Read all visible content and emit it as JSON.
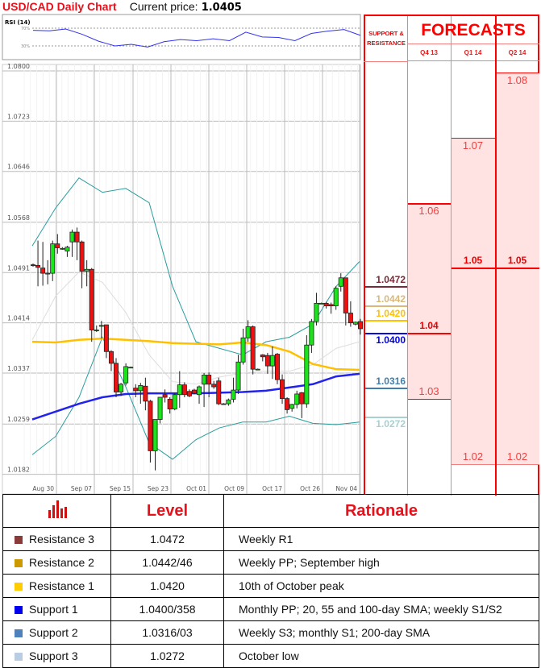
{
  "header": {
    "title": "USD/CAD Daily Chart",
    "current_price_label": "Current price:",
    "current_price": "1.0405"
  },
  "rsi": {
    "label": "RSI (14)",
    "levels": [
      "70%",
      "30%"
    ],
    "values": [
      65.2,
      64.0,
      68.2,
      56.3,
      40.7,
      30.0,
      33.6,
      27.6,
      39.6,
      44.3,
      41.9,
      46.1,
      41.9,
      61.0,
      50.3,
      49.1,
      41.9,
      58.1,
      63.4,
      67.0,
      53.9
    ]
  },
  "chart_data": {
    "type": "candlestick",
    "y_ticks": [
      "1.0800",
      "1.0723",
      "1.0646",
      "1.0568",
      "1.0491",
      "1.0414",
      "1.0337",
      "1.0259",
      "1.0182"
    ],
    "x_ticks": [
      "Aug 30",
      "Sep 07",
      "Sep 15",
      "Sep 23",
      "Oct 01",
      "Oct 09",
      "Oct 17",
      "Oct 26",
      "Nov 04"
    ],
    "ylim": [
      1.0182,
      1.08
    ],
    "grid": true,
    "colors": {
      "up": "#19e619",
      "down": "#ee1111",
      "sma_yellow": "#ffc000",
      "sma_blue": "#2222ee",
      "bollinger": "#2a9d9d",
      "sma_grey": "#dddddd"
    },
    "candles_ohlc": [
      [
        1.0503,
        1.0505,
        1.05,
        1.0502
      ],
      [
        1.0502,
        1.054,
        1.047,
        1.0499
      ],
      [
        1.0498,
        1.0538,
        1.0471,
        1.049
      ],
      [
        1.049,
        1.051,
        1.0473,
        1.049
      ],
      [
        1.049,
        1.054,
        1.0478,
        1.0535
      ],
      [
        1.0535,
        1.055,
        1.052,
        1.0529
      ],
      [
        1.0528,
        1.053,
        1.0526,
        1.0528
      ],
      [
        1.0524,
        1.0532,
        1.0515,
        1.053
      ],
      [
        1.0538,
        1.0557,
        1.0515,
        1.0553
      ],
      [
        1.0553,
        1.056,
        1.051,
        1.0538
      ],
      [
        1.0538,
        1.054,
        1.0467,
        1.0493
      ],
      [
        1.0493,
        1.051,
        1.047,
        1.0496
      ],
      [
        1.0496,
        1.0498,
        1.0385,
        1.0403
      ],
      [
        1.0403,
        1.041,
        1.04,
        1.0403
      ],
      [
        1.041,
        1.0417,
        1.039,
        1.041
      ],
      [
        1.0411,
        1.0411,
        1.036,
        1.037
      ],
      [
        1.037,
        1.0372,
        1.034,
        1.0352
      ],
      [
        1.0352,
        1.036,
        1.03,
        1.0308
      ],
      [
        1.0308,
        1.0322,
        1.0302,
        1.032
      ],
      [
        1.0322,
        1.0352,
        1.0318,
        1.0347
      ],
      [
        1.0346,
        1.0347,
        1.0345,
        1.0346
      ],
      [
        1.0314,
        1.032,
        1.03,
        1.031
      ],
      [
        1.031,
        1.0322,
        1.029,
        1.0318
      ],
      [
        1.0317,
        1.033,
        1.028,
        1.0294
      ],
      [
        1.0294,
        1.0296,
        1.02,
        1.0218
      ],
      [
        1.0218,
        1.0266,
        1.0188,
        1.0266
      ],
      [
        1.0266,
        1.03,
        1.026,
        1.03
      ],
      [
        1.0304,
        1.0312,
        1.0292,
        1.03
      ],
      [
        1.0297,
        1.03,
        1.0275,
        1.0282
      ],
      [
        1.0282,
        1.0306,
        1.028,
        1.0304
      ],
      [
        1.0304,
        1.034,
        1.0284,
        1.0319
      ],
      [
        1.0319,
        1.0323,
        1.03,
        1.0304
      ],
      [
        1.0309,
        1.0312,
        1.03,
        1.0302
      ],
      [
        1.0311,
        1.0313,
        1.0305,
        1.0306
      ],
      [
        1.0304,
        1.0318,
        1.029,
        1.0316
      ],
      [
        1.032,
        1.0337,
        1.0285,
        1.0334
      ],
      [
        1.0334,
        1.0338,
        1.03,
        1.032
      ],
      [
        1.032,
        1.0325,
        1.0313,
        1.0316
      ],
      [
        1.0325,
        1.033,
        1.0288,
        1.029
      ],
      [
        1.029,
        1.0291,
        1.0289,
        1.029
      ],
      [
        1.029,
        1.0298,
        1.0287,
        1.0296
      ],
      [
        1.0297,
        1.033,
        1.0292,
        1.0311
      ],
      [
        1.0311,
        1.0365,
        1.0305,
        1.0354
      ],
      [
        1.0354,
        1.0405,
        1.035,
        1.0391
      ],
      [
        1.0391,
        1.0418,
        1.0385,
        1.0408
      ],
      [
        1.0408,
        1.041,
        1.0335,
        1.0343
      ],
      [
        1.0343,
        1.0344,
        1.0342,
        1.0343
      ],
      [
        1.0365,
        1.0366,
        1.0355,
        1.0362
      ],
      [
        1.0364,
        1.0368,
        1.0336,
        1.0348
      ],
      [
        1.0348,
        1.0378,
        1.0328,
        1.0364
      ],
      [
        1.0366,
        1.0368,
        1.032,
        1.0327
      ],
      [
        1.0327,
        1.0335,
        1.029,
        1.0298
      ],
      [
        1.0298,
        1.03,
        1.0275,
        1.0281
      ],
      [
        1.0283,
        1.029,
        1.0278,
        1.0289
      ],
      [
        1.0289,
        1.031,
        1.0283,
        1.0305
      ],
      [
        1.0307,
        1.0308,
        1.0268,
        1.029
      ],
      [
        1.029,
        1.0395,
        1.0284,
        1.038
      ],
      [
        1.038,
        1.042,
        1.0368,
        1.0416
      ],
      [
        1.0416,
        1.046,
        1.041,
        1.0444
      ],
      [
        1.0444,
        1.0445,
        1.0443,
        1.0444
      ],
      [
        1.0444,
        1.0446,
        1.0436,
        1.044
      ],
      [
        1.0442,
        1.0445,
        1.0428,
        1.044
      ],
      [
        1.044,
        1.047,
        1.0434,
        1.0467
      ],
      [
        1.047,
        1.049,
        1.0462,
        1.0483
      ],
      [
        1.0483,
        1.0483,
        1.041,
        1.0429
      ],
      [
        1.0429,
        1.0447,
        1.0408,
        1.0414
      ],
      [
        1.0412,
        1.0416,
        1.041,
        1.0415
      ],
      [
        1.0416,
        1.042,
        1.0396,
        1.0405
      ]
    ],
    "lines": {
      "sma_yellow": [
        1.0385,
        1.0384,
        1.0388,
        1.039,
        1.0388,
        1.0386,
        1.0383,
        1.0382,
        1.0381,
        1.0384,
        1.038,
        1.037,
        1.0351,
        1.0343,
        1.0342
      ],
      "sma_blue": [
        1.0266,
        1.0278,
        1.029,
        1.03,
        1.0305,
        1.0306,
        1.0306,
        1.0306,
        1.0307,
        1.0308,
        1.031,
        1.0315,
        1.032,
        1.0332,
        1.0336
      ],
      "bollinger_upper": [
        1.0532,
        1.059,
        1.0636,
        1.0614,
        1.062,
        1.0598,
        1.047,
        1.0385,
        1.0375,
        1.0365,
        1.0385,
        1.0392,
        1.0412,
        1.047,
        1.0508
      ],
      "bollinger_lower": [
        1.0212,
        1.024,
        1.03,
        1.0392,
        1.0316,
        1.023,
        1.0205,
        1.0235,
        1.0253,
        1.0262,
        1.0262,
        1.0271,
        1.026,
        1.0258,
        1.0262
      ],
      "sma_grey": [
        1.0388,
        1.0455,
        1.0492,
        1.0476,
        1.043,
        1.0365,
        1.0324,
        1.032,
        1.0331,
        1.0337,
        1.034,
        1.034,
        1.035,
        1.0375,
        1.0385
      ]
    }
  },
  "forecasts": {
    "title": "FORECASTS",
    "sr_header": "SUPPORT & RESISTANCE",
    "columns": [
      {
        "label": "Q4 13",
        "high": 1.06,
        "median": 1.04,
        "low": 1.03,
        "high_label": "1.06",
        "median_label": "1.04",
        "low_label": "1.03"
      },
      {
        "label": "Q1 14",
        "high": 1.07,
        "median": 1.05,
        "low": 1.02,
        "high_label": "1.07",
        "median_label": "1.05",
        "low_label": "1.02"
      },
      {
        "label": "Q2 14",
        "high": 1.08,
        "median": 1.05,
        "low": 1.02,
        "high_label": "1.08",
        "median_label": "1.05",
        "low_label": "1.02"
      }
    ],
    "fill_color": "#ffe3e3",
    "line_color": "#ff0000"
  },
  "levels": {
    "headers": {
      "level": "Level",
      "rationale": "Rationale"
    },
    "icon": "bar-chart-icon",
    "rows": [
      {
        "name": "Resistance 3",
        "value": 1.0472,
        "value_label": "1.0472",
        "level": "1.0472",
        "rationale": "Weekly R1",
        "color": "#7b2a3a"
      },
      {
        "name": "Resistance 2",
        "value": 1.0442,
        "value_label": "1.0442",
        "level": "1.0442/46",
        "rationale": "Weekly PP; September high",
        "color": "#d9b87a"
      },
      {
        "name": "Resistance 1",
        "value": 1.042,
        "value_label": "1.0420",
        "level": "1.0420",
        "rationale": "10th of October peak",
        "color": "#ffc000"
      },
      {
        "name": "Support 1",
        "value": 1.04,
        "value_label": "1.0400",
        "level": "1.0400/358",
        "rationale": "Monthly PP; 20, 55 and 100-day SMA; weekly S1/S2",
        "color": "#0000ee"
      },
      {
        "name": "Support 2",
        "value": 1.0316,
        "value_label": "1.0316",
        "level": "1.0316/03",
        "rationale": "Weekly S3; monthly S1; 200-day SMA",
        "color": "#3f7faf"
      },
      {
        "name": "Support 3",
        "value": 1.0272,
        "value_label": "1.0272",
        "level": "1.0272",
        "rationale": "October low",
        "color": "#a8d0d0"
      }
    ],
    "swatch_colors": [
      "#8b3a3a",
      "#cc9900",
      "#ffcc00",
      "#0000ee",
      "#4f81bd",
      "#b8cce4"
    ]
  }
}
